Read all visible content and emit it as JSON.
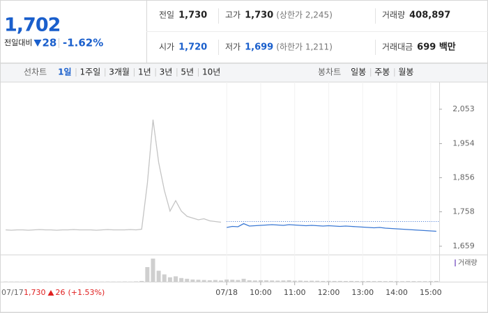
{
  "quote": {
    "price": "1,702",
    "change_label": "전일대비",
    "change": "28",
    "change_pct": "-1.62%",
    "color": "#1a5fcc",
    "items": [
      {
        "label": "전일",
        "value": "1,730",
        "color": "#222"
      },
      {
        "label": "고가",
        "value": "1,730",
        "note": "(상한가 2,245)",
        "color": "#222"
      },
      {
        "label": "거래량",
        "value": "408,897",
        "color": "#222"
      },
      {
        "label": "시가",
        "value": "1,720",
        "color": "#1a5fcc"
      },
      {
        "label": "저가",
        "value": "1,699",
        "note": "(하한가 1,211)",
        "color": "#1a5fcc"
      },
      {
        "label": "거래대금",
        "value": "699 백만",
        "color": "#222"
      }
    ]
  },
  "tabs": {
    "line_label": "선차트",
    "line_periods": [
      "1일",
      "1주일",
      "3개월",
      "1년",
      "3년",
      "5년",
      "10년"
    ],
    "active": 0,
    "candle_label": "봉차트",
    "candle_periods": [
      "일봉",
      "주봉",
      "월봉"
    ]
  },
  "chart_data": {
    "type": "line",
    "xlim": [
      -10,
      765
    ],
    "ylim": [
      1637,
      2087
    ],
    "xticks": [
      {
        "value": 390,
        "label": "07/18"
      },
      {
        "value": 450,
        "label": "10:00"
      },
      {
        "value": 510,
        "label": "11:00"
      },
      {
        "value": 570,
        "label": "12:00"
      },
      {
        "value": 630,
        "label": "13:00"
      },
      {
        "value": 690,
        "label": "14:00"
      },
      {
        "value": 750,
        "label": "15:00"
      }
    ],
    "yticks": [
      {
        "value": 2053,
        "label": "2,053"
      },
      {
        "value": 1954,
        "label": "1,954"
      },
      {
        "value": 1856,
        "label": "1,856"
      },
      {
        "value": 1758,
        "label": "1,758"
      },
      {
        "value": 1659,
        "label": "1,659"
      }
    ],
    "ref_line": {
      "value": 1730,
      "color": "#3a6fd0"
    },
    "series": [
      {
        "color": "#c4c4c4",
        "x": [
          0,
          10,
          20,
          30,
          40,
          50,
          60,
          70,
          80,
          90,
          100,
          110,
          120,
          130,
          140,
          150,
          160,
          170,
          180,
          190,
          200,
          210,
          220,
          230,
          240,
          250,
          260,
          270,
          280,
          290,
          300,
          310,
          320,
          330,
          340,
          350,
          360,
          370,
          380
        ],
        "values": [
          1706,
          1705,
          1706,
          1706,
          1705,
          1706,
          1707,
          1706,
          1706,
          1705,
          1706,
          1706,
          1707,
          1706,
          1706,
          1706,
          1705,
          1706,
          1707,
          1706,
          1706,
          1706,
          1707,
          1706,
          1708,
          1840,
          2023,
          1900,
          1820,
          1760,
          1790,
          1760,
          1745,
          1740,
          1735,
          1738,
          1732,
          1730,
          1728
        ]
      },
      {
        "color": "#3a78d4",
        "x": [
          390,
          400,
          410,
          420,
          430,
          440,
          450,
          460,
          470,
          480,
          490,
          500,
          510,
          520,
          530,
          540,
          550,
          560,
          570,
          580,
          590,
          600,
          610,
          620,
          630,
          640,
          650,
          660,
          670,
          680,
          690,
          700,
          710,
          720,
          730,
          740,
          750,
          760
        ],
        "values": [
          1713,
          1716,
          1715,
          1724,
          1717,
          1718,
          1719,
          1720,
          1721,
          1720,
          1719,
          1721,
          1720,
          1719,
          1718,
          1719,
          1718,
          1717,
          1718,
          1717,
          1716,
          1717,
          1716,
          1715,
          1714,
          1713,
          1712,
          1713,
          1711,
          1710,
          1709,
          1708,
          1707,
          1706,
          1705,
          1704,
          1703,
          1702
        ]
      }
    ],
    "volume": {
      "name": "거래량",
      "color": "#cfcfcf",
      "legend_color": "#a58bd6",
      "ylim": [
        0,
        100000
      ],
      "series": [
        {
          "values": [
            800,
            600,
            700,
            500,
            900,
            600,
            700,
            800,
            600,
            500,
            700,
            600,
            800,
            700,
            600,
            500,
            700,
            600,
            800,
            700,
            600,
            900,
            700,
            1200,
            3000,
            60000,
            95000,
            45000,
            30000,
            18000,
            22000,
            15000,
            12000,
            9000,
            8000,
            7000,
            6000,
            7000,
            5000
          ]
        },
        {
          "values": [
            9000,
            8000,
            7000,
            12000,
            6000,
            5000,
            6000,
            5500,
            5000,
            4500,
            5000,
            6000,
            4000,
            4500,
            3500,
            4000,
            3800,
            3000,
            3500,
            3000,
            3200,
            2800,
            3000,
            2600,
            2500,
            2800,
            2400,
            2600,
            2200,
            2500,
            2300,
            2000,
            2400,
            2200,
            2000,
            2100,
            2500,
            3000
          ]
        }
      ]
    },
    "annotation": {
      "date": "07/17",
      "price": "1,730",
      "change": "26",
      "change_pct": "(+1.53%)",
      "color": "#e02020"
    }
  }
}
